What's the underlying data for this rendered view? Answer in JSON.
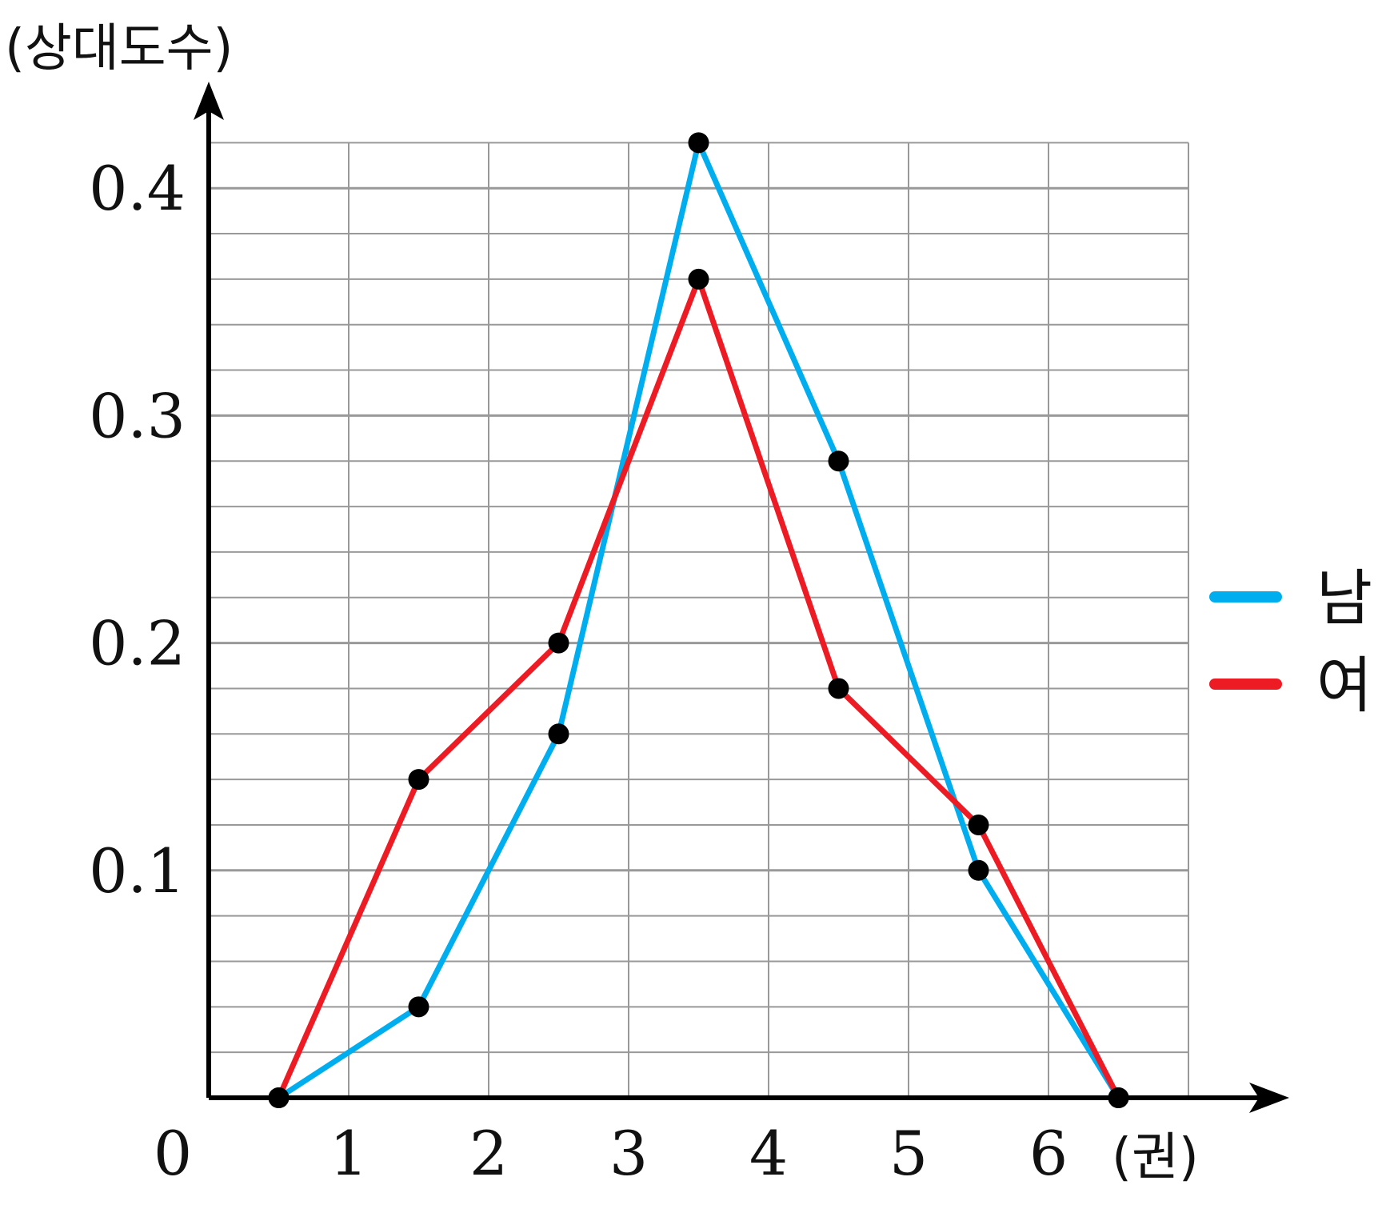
{
  "chart_data": {
    "type": "line",
    "ylabel": "(상대도수)",
    "xlabel": "(권)",
    "origin_label": "0",
    "x_ticks": [
      "1",
      "2",
      "3",
      "4",
      "5",
      "6"
    ],
    "y_ticks": [
      "0.1",
      "0.2",
      "0.3",
      "0.4"
    ],
    "xlim": [
      0,
      7
    ],
    "ylim": [
      0,
      0.42
    ],
    "grid": true,
    "legend_position": "right",
    "series": [
      {
        "name": "남",
        "color": "#00aeef",
        "x": [
          0.5,
          1.5,
          2.5,
          3.5,
          4.5,
          5.5,
          6.5
        ],
        "y": [
          0,
          0.04,
          0.16,
          0.42,
          0.28,
          0.1,
          0
        ]
      },
      {
        "name": "여",
        "color": "#ed1c24",
        "x": [
          0.5,
          1.5,
          2.5,
          3.5,
          4.5,
          5.5,
          6.5
        ],
        "y": [
          0,
          0.14,
          0.2,
          0.36,
          0.18,
          0.12,
          0
        ]
      }
    ]
  }
}
